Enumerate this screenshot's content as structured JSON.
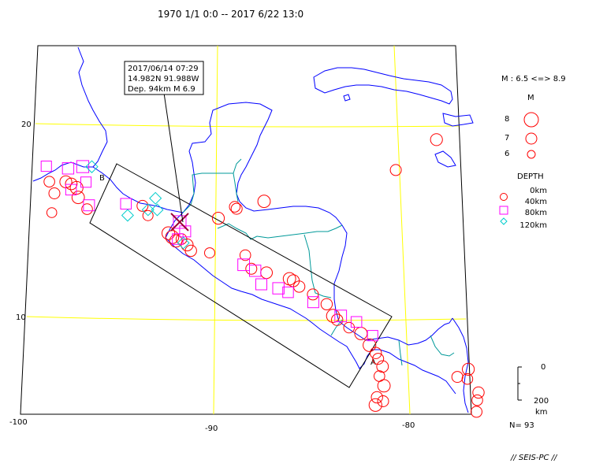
{
  "title": "1970 1/1 0:0 -- 2017 6/22 13:0",
  "axes": {
    "lon_ticks": [
      "-100",
      "-90",
      "-80"
    ],
    "lat_ticks": [
      "20",
      "10"
    ]
  },
  "callout": {
    "datetime": "2017/06/14 07:29",
    "location": "14.982N  91.988W",
    "depth_mag": "Dep. 94km    M 6.9"
  },
  "section_labels": {
    "start": "B",
    "end": "A"
  },
  "legend": {
    "mag_range": "M : 6.5 <=> 8.9",
    "mag_title": "M",
    "mag_items": [
      "8",
      "7",
      "6"
    ],
    "depth_title": "DEPTH",
    "depth_items": [
      "0km",
      "40km",
      "80km",
      "120km"
    ]
  },
  "depth_scale": {
    "top": "0",
    "bottom": "200",
    "unit": "km"
  },
  "count": "N= 93",
  "credit": "// SEIS-PC //",
  "colors": {
    "coast": "#0000ff",
    "border": "#009999",
    "grid": "#ffff00",
    "shallow": "#ff0000",
    "intermediate": "#ff00ff",
    "deep": "#00cccc",
    "highlight": "#990033"
  },
  "map_data": {
    "highlight": {
      "lon": -91.988,
      "lat": 14.982,
      "depth_km": 94,
      "mag": 6.9
    },
    "events": [
      [
        -99.1,
        17.0,
        30,
        6.8
      ],
      [
        -98.8,
        16.4,
        20,
        6.9
      ],
      [
        -98.2,
        17.0,
        25,
        7.2
      ],
      [
        -97.9,
        16.9,
        50,
        7.1
      ],
      [
        -97.6,
        16.7,
        30,
        7.4
      ],
      [
        -97.5,
        16.2,
        25,
        7.3
      ],
      [
        -98.9,
        15.4,
        20,
        6.6
      ],
      [
        -97.0,
        15.6,
        30,
        6.8
      ],
      [
        -94.0,
        15.8,
        20,
        6.9
      ],
      [
        -93.7,
        15.3,
        25,
        6.7
      ],
      [
        -92.6,
        14.4,
        30,
        7.4
      ],
      [
        -92.4,
        14.2,
        25,
        7.5
      ],
      [
        -92.2,
        14.0,
        30,
        7.3
      ],
      [
        -91.9,
        14.1,
        40,
        6.8
      ],
      [
        -91.6,
        13.8,
        30,
        7.2
      ],
      [
        -91.4,
        13.5,
        20,
        7.0
      ],
      [
        -90.4,
        13.4,
        25,
        6.7
      ],
      [
        -89.9,
        15.2,
        20,
        7.2
      ],
      [
        -89.0,
        15.8,
        25,
        6.8
      ],
      [
        -88.9,
        15.7,
        20,
        6.9
      ],
      [
        -87.4,
        16.1,
        30,
        7.3
      ],
      [
        -88.5,
        13.3,
        25,
        6.8
      ],
      [
        -88.2,
        12.6,
        20,
        6.9
      ],
      [
        -87.4,
        12.4,
        30,
        7.1
      ],
      [
        -86.2,
        12.1,
        25,
        7.3
      ],
      [
        -86.0,
        12.0,
        30,
        7.2
      ],
      [
        -85.7,
        11.7,
        20,
        7.0
      ],
      [
        -85.0,
        11.3,
        25,
        6.9
      ],
      [
        -84.3,
        10.8,
        30,
        7.0
      ],
      [
        -84.0,
        10.2,
        20,
        7.5
      ],
      [
        -83.8,
        10.0,
        25,
        7.0
      ],
      [
        -83.2,
        9.6,
        30,
        6.8
      ],
      [
        -82.6,
        9.3,
        25,
        7.3
      ],
      [
        -82.2,
        8.7,
        30,
        7.4
      ],
      [
        -81.9,
        8.3,
        20,
        7.0
      ],
      [
        -81.8,
        8.0,
        25,
        6.9
      ],
      [
        -81.6,
        7.6,
        30,
        7.1
      ],
      [
        -81.8,
        7.1,
        20,
        6.8
      ],
      [
        -81.6,
        6.6,
        25,
        7.3
      ],
      [
        -82.0,
        6.0,
        30,
        7.0
      ],
      [
        -82.1,
        5.6,
        25,
        7.4
      ],
      [
        -81.7,
        5.8,
        20,
        6.9
      ],
      [
        -80.1,
        17.8,
        30,
        6.9
      ],
      [
        -77.7,
        19.4,
        20,
        7.2
      ],
      [
        -77.8,
        7.1,
        25,
        6.9
      ],
      [
        -77.2,
        7.5,
        30,
        7.2
      ],
      [
        -77.3,
        7.0,
        20,
        6.8
      ],
      [
        -76.8,
        6.3,
        25,
        7.0
      ],
      [
        -76.9,
        5.9,
        30,
        6.8
      ],
      [
        -77.0,
        5.3,
        20,
        6.9
      ]
    ],
    "intermediate": [
      [
        -99.3,
        17.8,
        70,
        6.7
      ],
      [
        -98.1,
        17.7,
        80,
        7.0
      ],
      [
        -97.3,
        17.8,
        70,
        7.2
      ],
      [
        -97.1,
        17.0,
        60,
        6.7
      ],
      [
        -97.9,
        16.6,
        70,
        6.8
      ],
      [
        -96.9,
        15.8,
        60,
        6.9
      ],
      [
        -94.9,
        15.9,
        70,
        6.8
      ],
      [
        -92.1,
        14.1,
        80,
        6.8
      ],
      [
        -91.7,
        14.5,
        70,
        6.9
      ],
      [
        -88.6,
        12.8,
        90,
        7.1
      ],
      [
        -88.0,
        12.5,
        80,
        7.0
      ],
      [
        -87.7,
        11.8,
        70,
        6.9
      ],
      [
        -86.8,
        11.6,
        80,
        7.0
      ],
      [
        -86.3,
        11.4,
        70,
        6.8
      ],
      [
        -85.0,
        10.9,
        80,
        6.9
      ],
      [
        -83.6,
        10.2,
        70,
        7.1
      ],
      [
        -82.8,
        9.9,
        80,
        6.8
      ],
      [
        -82.0,
        9.2,
        70,
        6.7
      ]
    ],
    "deep": [
      [
        -96.8,
        17.8,
        120,
        6.7
      ],
      [
        -94.8,
        15.3,
        110,
        6.6
      ],
      [
        -93.7,
        15.6,
        120,
        6.6
      ],
      [
        -93.3,
        16.2,
        110,
        6.6
      ],
      [
        -93.2,
        15.6,
        120,
        6.6
      ],
      [
        -91.8,
        13.9,
        115,
        6.6
      ]
    ]
  }
}
